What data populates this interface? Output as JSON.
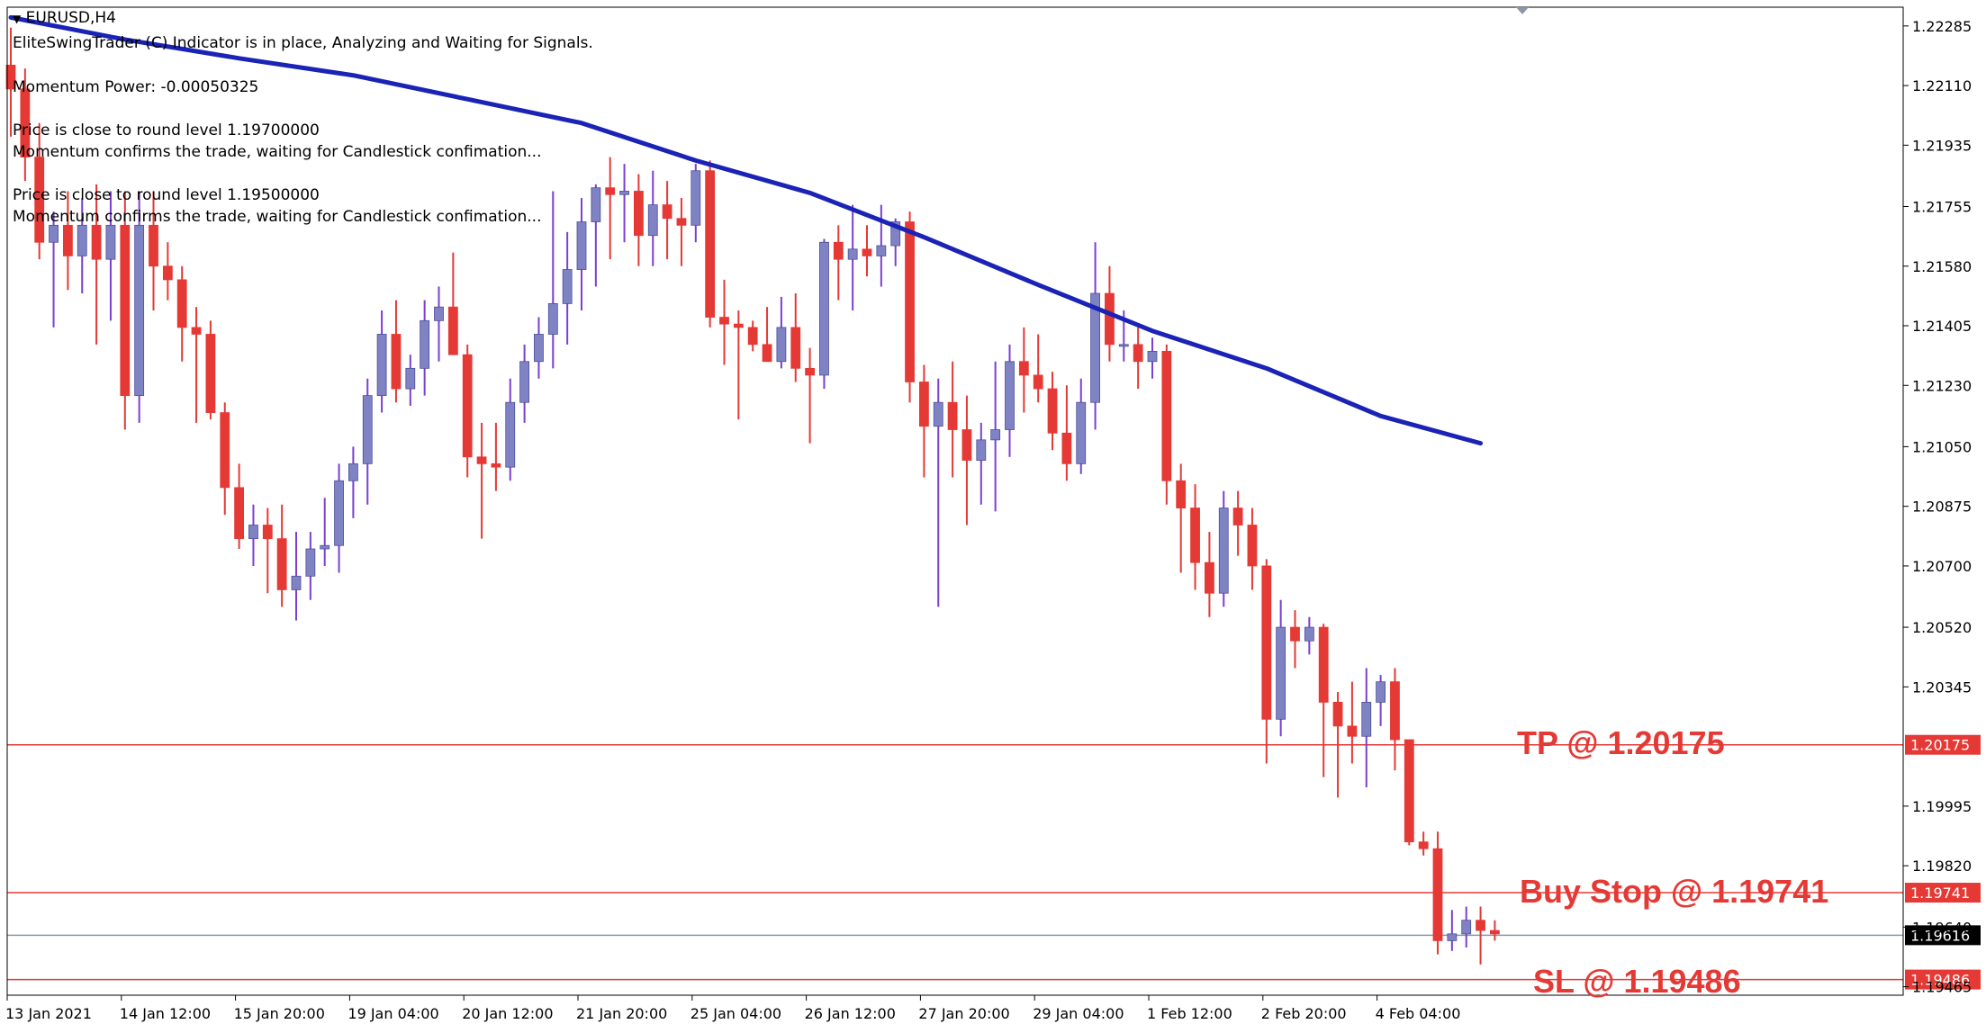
{
  "symbol": {
    "title": "EURUSD,H4"
  },
  "indicator_text": [
    "EliteSwingTrader (C) Indicator is in place, Analyzing and Waiting for Signals.",
    "Momentum Power: -0.00050325",
    "Price is close to round level 1.19700000",
    "Momentum confirms the trade, waiting for Candlestick confimation...",
    "Price is close to round level 1.19500000",
    "Momentum confirms the trade, waiting for Candlestick confimation..."
  ],
  "labels": {
    "tp": "TP @ 1.20175",
    "buy_stop": "Buy Stop @ 1.19741",
    "sl": "SL @ 1.19486"
  },
  "colors": {
    "bull": "#7f83c4",
    "bear": "#e53935",
    "wick_bull": "#7b3fd1",
    "wick_bear": "#e53935",
    "ma": "#1a23b5",
    "level_line": "#e53935",
    "current_line": "#8a97a6",
    "current_tag_bg": "#000000"
  },
  "chart_data": {
    "type": "candlestick",
    "timeframe": "H4",
    "ylim": [
      1.1944,
      1.2234
    ],
    "y_ticks": [
      1.22285,
      1.2211,
      1.21935,
      1.21755,
      1.2158,
      1.21405,
      1.2123,
      1.2105,
      1.20875,
      1.207,
      1.2052,
      1.20345,
      1.19995,
      1.1982,
      1.1964,
      1.19465
    ],
    "y_tick_labels": [
      "1.22285",
      "1.22110",
      "1.21935",
      "1.21755",
      "1.21580",
      "1.21405",
      "1.21230",
      "1.21050",
      "1.20875",
      "1.20700",
      "1.20520",
      "1.20345",
      "1.19995",
      "1.19820",
      "1.19640",
      "1.19465"
    ],
    "x_labels": [
      "13 Jan 2021",
      "14 Jan 12:00",
      "15 Jan 20:00",
      "19 Jan 04:00",
      "20 Jan 12:00",
      "21 Jan 20:00",
      "25 Jan 04:00",
      "26 Jan 12:00",
      "27 Jan 20:00",
      "29 Jan 04:00",
      "1 Feb 12:00",
      "2 Feb 20:00",
      "4 Feb 04:00"
    ],
    "x_label_index": [
      0,
      8,
      16,
      24,
      32,
      40,
      48,
      56,
      64,
      72,
      80,
      88,
      96
    ],
    "levels": [
      {
        "name": "TP",
        "value": 1.20175,
        "tag": "1.20175"
      },
      {
        "name": "Buy Stop",
        "value": 1.19741,
        "tag": "1.19741"
      },
      {
        "name": "SL",
        "value": 1.19486,
        "tag": "1.19486"
      }
    ],
    "current_price": {
      "value": 1.19616,
      "tag": "1.19616"
    },
    "candles": [
      [
        1.2217,
        1.2228,
        1.2196,
        1.221
      ],
      [
        1.221,
        1.2216,
        1.2183,
        1.219
      ],
      [
        1.219,
        1.22,
        1.216,
        1.2165
      ],
      [
        1.2165,
        1.2174,
        1.214,
        1.217
      ],
      [
        1.217,
        1.218,
        1.2151,
        1.2161
      ],
      [
        1.2161,
        1.2178,
        1.215,
        1.217
      ],
      [
        1.217,
        1.2182,
        1.2135,
        1.216
      ],
      [
        1.216,
        1.218,
        1.2142,
        1.217
      ],
      [
        1.217,
        1.218,
        1.211,
        1.212
      ],
      [
        1.212,
        1.218,
        1.2112,
        1.217
      ],
      [
        1.217,
        1.218,
        1.2145,
        1.2158
      ],
      [
        1.2158,
        1.2165,
        1.2148,
        1.2154
      ],
      [
        1.2154,
        1.2158,
        1.213,
        1.214
      ],
      [
        1.214,
        1.2146,
        1.2112,
        1.2138
      ],
      [
        1.2138,
        1.2142,
        1.2113,
        1.2115
      ],
      [
        1.2115,
        1.2118,
        1.2085,
        1.2093
      ],
      [
        1.2093,
        1.21,
        1.2075,
        1.2078
      ],
      [
        1.2078,
        1.2088,
        1.207,
        1.2082
      ],
      [
        1.2082,
        1.2087,
        1.2062,
        1.2078
      ],
      [
        1.2078,
        1.2088,
        1.2058,
        1.2063
      ],
      [
        1.2063,
        1.208,
        1.2054,
        1.2067
      ],
      [
        1.2067,
        1.208,
        1.206,
        1.2075
      ],
      [
        1.2075,
        1.209,
        1.207,
        1.2076
      ],
      [
        1.2076,
        1.21,
        1.2068,
        1.2095
      ],
      [
        1.2095,
        1.2105,
        1.2084,
        1.21
      ],
      [
        1.21,
        1.2125,
        1.2088,
        1.212
      ],
      [
        1.212,
        1.2145,
        1.2115,
        1.2138
      ],
      [
        1.2138,
        1.2148,
        1.2118,
        1.2122
      ],
      [
        1.2122,
        1.2132,
        1.2117,
        1.2128
      ],
      [
        1.2128,
        1.2148,
        1.212,
        1.2142
      ],
      [
        1.2142,
        1.2152,
        1.213,
        1.2146
      ],
      [
        1.2146,
        1.2162,
        1.2132,
        1.2132
      ],
      [
        1.2132,
        1.2135,
        1.2096,
        1.2102
      ],
      [
        1.2102,
        1.2112,
        1.2078,
        1.21
      ],
      [
        1.21,
        1.2112,
        1.2092,
        1.2099
      ],
      [
        1.2099,
        1.2125,
        1.2095,
        1.2118
      ],
      [
        1.2118,
        1.2135,
        1.2112,
        1.213
      ],
      [
        1.213,
        1.2143,
        1.2125,
        1.2138
      ],
      [
        1.2138,
        1.218,
        1.2128,
        1.2147
      ],
      [
        1.2147,
        1.2168,
        1.2135,
        1.2157
      ],
      [
        1.2157,
        1.2178,
        1.2145,
        1.2171
      ],
      [
        1.2171,
        1.2182,
        1.2152,
        1.2181
      ],
      [
        1.2181,
        1.219,
        1.216,
        1.2179
      ],
      [
        1.2179,
        1.2188,
        1.2165,
        1.218
      ],
      [
        1.218,
        1.2185,
        1.2158,
        1.2167
      ],
      [
        1.2167,
        1.2186,
        1.2158,
        1.2176
      ],
      [
        1.2176,
        1.2183,
        1.216,
        1.2172
      ],
      [
        1.2172,
        1.2178,
        1.2158,
        1.217
      ],
      [
        1.217,
        1.2188,
        1.2165,
        1.2186
      ],
      [
        1.2186,
        1.2189,
        1.214,
        1.2143
      ],
      [
        1.2143,
        1.2154,
        1.2129,
        1.2141
      ],
      [
        1.2141,
        1.2145,
        1.2113,
        1.214
      ],
      [
        1.214,
        1.2142,
        1.2133,
        1.2135
      ],
      [
        1.2135,
        1.2146,
        1.213,
        1.213
      ],
      [
        1.213,
        1.2149,
        1.2128,
        1.214
      ],
      [
        1.214,
        1.215,
        1.2124,
        1.2128
      ],
      [
        1.2128,
        1.2134,
        1.2106,
        1.2126
      ],
      [
        1.2126,
        1.2166,
        1.2122,
        1.2165
      ],
      [
        1.2165,
        1.217,
        1.2148,
        1.216
      ],
      [
        1.216,
        1.2176,
        1.2145,
        1.2163
      ],
      [
        1.2163,
        1.217,
        1.2155,
        1.2161
      ],
      [
        1.2161,
        1.2176,
        1.2152,
        1.2164
      ],
      [
        1.2164,
        1.2172,
        1.2158,
        1.2171
      ],
      [
        1.2171,
        1.2174,
        1.2118,
        1.2124
      ],
      [
        1.2124,
        1.2129,
        1.2096,
        1.2111
      ],
      [
        1.2111,
        1.2125,
        1.2058,
        1.2118
      ],
      [
        1.2118,
        1.213,
        1.2096,
        1.211
      ],
      [
        1.211,
        1.212,
        1.2082,
        1.2101
      ],
      [
        1.2101,
        1.2112,
        1.2088,
        1.2107
      ],
      [
        1.2107,
        1.213,
        1.2086,
        1.211
      ],
      [
        1.211,
        1.2135,
        1.2102,
        1.213
      ],
      [
        1.213,
        1.214,
        1.2115,
        1.2126
      ],
      [
        1.2126,
        1.2138,
        1.2118,
        1.2122
      ],
      [
        1.2122,
        1.2127,
        1.2104,
        1.2109
      ],
      [
        1.2109,
        1.2123,
        1.2095,
        1.21
      ],
      [
        1.21,
        1.2125,
        1.2097,
        1.2118
      ],
      [
        1.2118,
        1.2165,
        1.211,
        1.215
      ],
      [
        1.215,
        1.2158,
        1.213,
        1.2135
      ],
      [
        1.2135,
        1.2145,
        1.213,
        1.2135
      ],
      [
        1.2135,
        1.214,
        1.2122,
        1.213
      ],
      [
        1.213,
        1.2137,
        1.2125,
        1.2133
      ],
      [
        1.2133,
        1.2135,
        1.2088,
        1.2095
      ],
      [
        1.2095,
        1.21,
        1.2068,
        1.2087
      ],
      [
        1.2087,
        1.2094,
        1.2063,
        1.2071
      ],
      [
        1.2071,
        1.208,
        1.2055,
        1.2062
      ],
      [
        1.2062,
        1.2092,
        1.2058,
        1.2087
      ],
      [
        1.2087,
        1.2092,
        1.2073,
        1.2082
      ],
      [
        1.2082,
        1.2087,
        1.2063,
        1.207
      ],
      [
        1.207,
        1.2072,
        1.2012,
        1.2025
      ],
      [
        1.2025,
        1.206,
        1.202,
        1.2052
      ],
      [
        1.2052,
        1.2057,
        1.204,
        1.2048
      ],
      [
        1.2048,
        1.2055,
        1.2044,
        1.2052
      ],
      [
        1.2052,
        1.2053,
        1.2008,
        1.203
      ],
      [
        1.203,
        1.2033,
        1.2002,
        1.2023
      ],
      [
        1.2023,
        1.2036,
        1.2012,
        1.202
      ],
      [
        1.202,
        1.204,
        1.2005,
        1.203
      ],
      [
        1.203,
        1.2038,
        1.2023,
        1.2036
      ],
      [
        1.2036,
        1.204,
        1.201,
        1.2019
      ],
      [
        1.2019,
        1.2019,
        1.1988,
        1.1989
      ],
      [
        1.1989,
        1.1992,
        1.1985,
        1.1987
      ],
      [
        1.1987,
        1.1992,
        1.1956,
        1.196
      ],
      [
        1.196,
        1.1969,
        1.1957,
        1.1962
      ],
      [
        1.1962,
        1.197,
        1.1958,
        1.1966
      ],
      [
        1.1966,
        1.197,
        1.1953,
        1.1963
      ],
      [
        1.1963,
        1.1966,
        1.196,
        1.1962
      ]
    ],
    "ma_series": [
      [
        0,
        1.2231
      ],
      [
        8,
        1.22245
      ],
      [
        16,
        1.2219
      ],
      [
        24,
        1.2214
      ],
      [
        32,
        1.2207
      ],
      [
        40,
        1.22
      ],
      [
        48,
        1.2189
      ],
      [
        56,
        1.21795
      ],
      [
        64,
        1.21665
      ],
      [
        72,
        1.21525
      ],
      [
        80,
        1.2139
      ],
      [
        88,
        1.2128
      ],
      [
        96,
        1.2114
      ],
      [
        103,
        1.2106
      ]
    ]
  }
}
